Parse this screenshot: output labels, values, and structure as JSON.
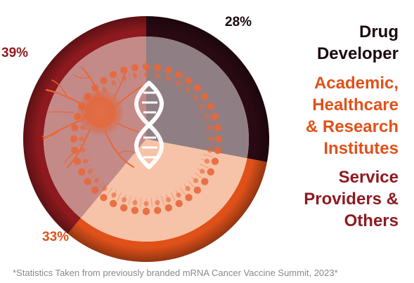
{
  "chart_data": {
    "type": "pie",
    "style": "donut",
    "start_angle_deg": 0,
    "segments": [
      {
        "label": "Drug\nDeveloper",
        "value": 28,
        "value_label": "28%",
        "ring_color": "#2a0a12",
        "fill_color": "#8f7e83",
        "label_color": "#1a0a0e"
      },
      {
        "label": "Academic,\nHealthcare\n& Research\nInstitutes",
        "value": 33,
        "value_label": "33%",
        "ring_color": "#e0511a",
        "fill_color": "#f6c3a8",
        "label_color": "#e0511a"
      },
      {
        "label": "Service\nProviders &\nOthers",
        "value": 39,
        "value_label": "39%",
        "ring_color": "#8e1a1f",
        "fill_color": "#c48a88",
        "label_color": "#8e1a1f"
      }
    ],
    "background_color": "#ffffff",
    "illustration": [
      "cancer-cell-illustration",
      "dna-helix-illustration",
      "lipid-nanoparticle-illustration"
    ]
  },
  "footnote": "*Statistics Taken from previously branded mRNA Cancer Vaccine Summit, 2023*"
}
